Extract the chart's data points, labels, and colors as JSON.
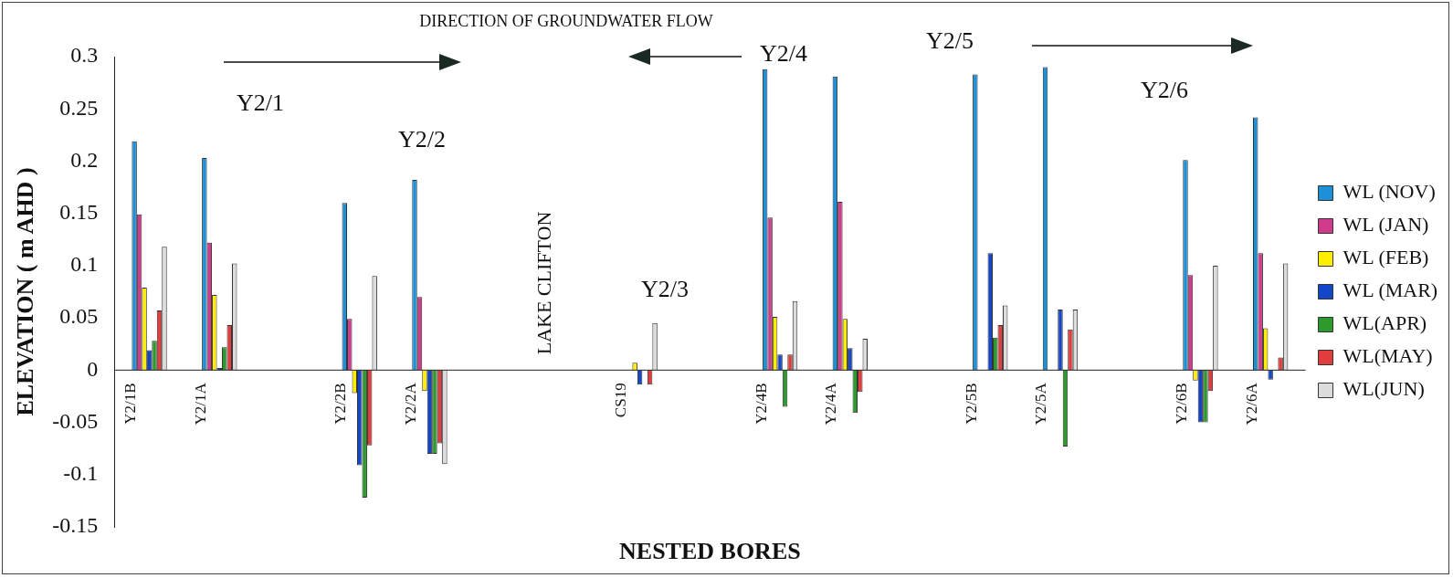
{
  "chart_data": {
    "type": "bar",
    "xlabel": "NESTED BORES",
    "ylabel": "ELEVATION ( m AHD )",
    "annotations": [
      "DIRECTION OF GROUNDWATER FLOW",
      "Y2/1",
      "Y2/2",
      "LAKE CLIFTON",
      "Y2/3",
      "Y2/4",
      "Y2/5",
      "Y2/6"
    ],
    "categories": [
      "Y2/1B",
      "Y2/1A",
      null,
      "Y2/2B",
      "Y2/2A",
      null,
      null,
      "CS19",
      null,
      "Y2/4B",
      "Y2/4A",
      null,
      "Y2/5B",
      "Y2/5A",
      null,
      "Y2/6B",
      "Y2/6A"
    ],
    "series": [
      {
        "name": "WL (NOV)",
        "color": "#1e90d8",
        "values": [
          0.219,
          0.203,
          null,
          0.16,
          0.182,
          null,
          null,
          null,
          null,
          0.288,
          0.281,
          null,
          0.283,
          0.29,
          null,
          0.201,
          0.242
        ]
      },
      {
        "name": "WL (JAN)",
        "color": "#d03c8c",
        "values": [
          0.149,
          0.122,
          null,
          0.049,
          0.07,
          null,
          null,
          null,
          null,
          0.146,
          0.161,
          null,
          null,
          null,
          null,
          0.091,
          0.112
        ]
      },
      {
        "name": "WL (FEB)",
        "color": "#ffee00",
        "values": [
          0.079,
          0.072,
          null,
          -0.022,
          -0.02,
          null,
          null,
          0.007,
          null,
          0.051,
          0.049,
          null,
          null,
          null,
          null,
          -0.01,
          0.04
        ]
      },
      {
        "name": "WL (MAR)",
        "color": "#1446c8",
        "values": [
          0.019,
          0.002,
          null,
          -0.091,
          -0.08,
          null,
          null,
          -0.014,
          null,
          0.015,
          0.021,
          null,
          0.112,
          0.058,
          null,
          -0.05,
          -0.009
        ]
      },
      {
        "name": "WL(APR)",
        "color": "#2e9a2e",
        "values": [
          0.028,
          0.022,
          null,
          -0.122,
          -0.08,
          null,
          null,
          null,
          null,
          -0.035,
          -0.041,
          null,
          0.031,
          -0.073,
          null,
          -0.05,
          null
        ]
      },
      {
        "name": "WL(MAY)",
        "color": "#e23c3c",
        "values": [
          0.057,
          0.043,
          null,
          -0.072,
          -0.07,
          null,
          null,
          -0.014,
          null,
          0.015,
          -0.021,
          null,
          0.043,
          0.039,
          null,
          -0.02,
          0.012
        ]
      },
      {
        "name": "WL(JUN)",
        "color": "#dcdcdc",
        "values": [
          0.118,
          0.102,
          null,
          0.09,
          -0.09,
          null,
          null,
          0.045,
          null,
          0.066,
          0.03,
          null,
          0.062,
          0.058,
          null,
          0.1,
          0.102
        ]
      }
    ],
    "ylim": [
      -0.15,
      0.3
    ],
    "yticks": [
      -0.15,
      -0.1,
      -0.05,
      0,
      0.05,
      0.1,
      0.15,
      0.2,
      0.25,
      0.3
    ],
    "grid": false,
    "legend": "right"
  }
}
